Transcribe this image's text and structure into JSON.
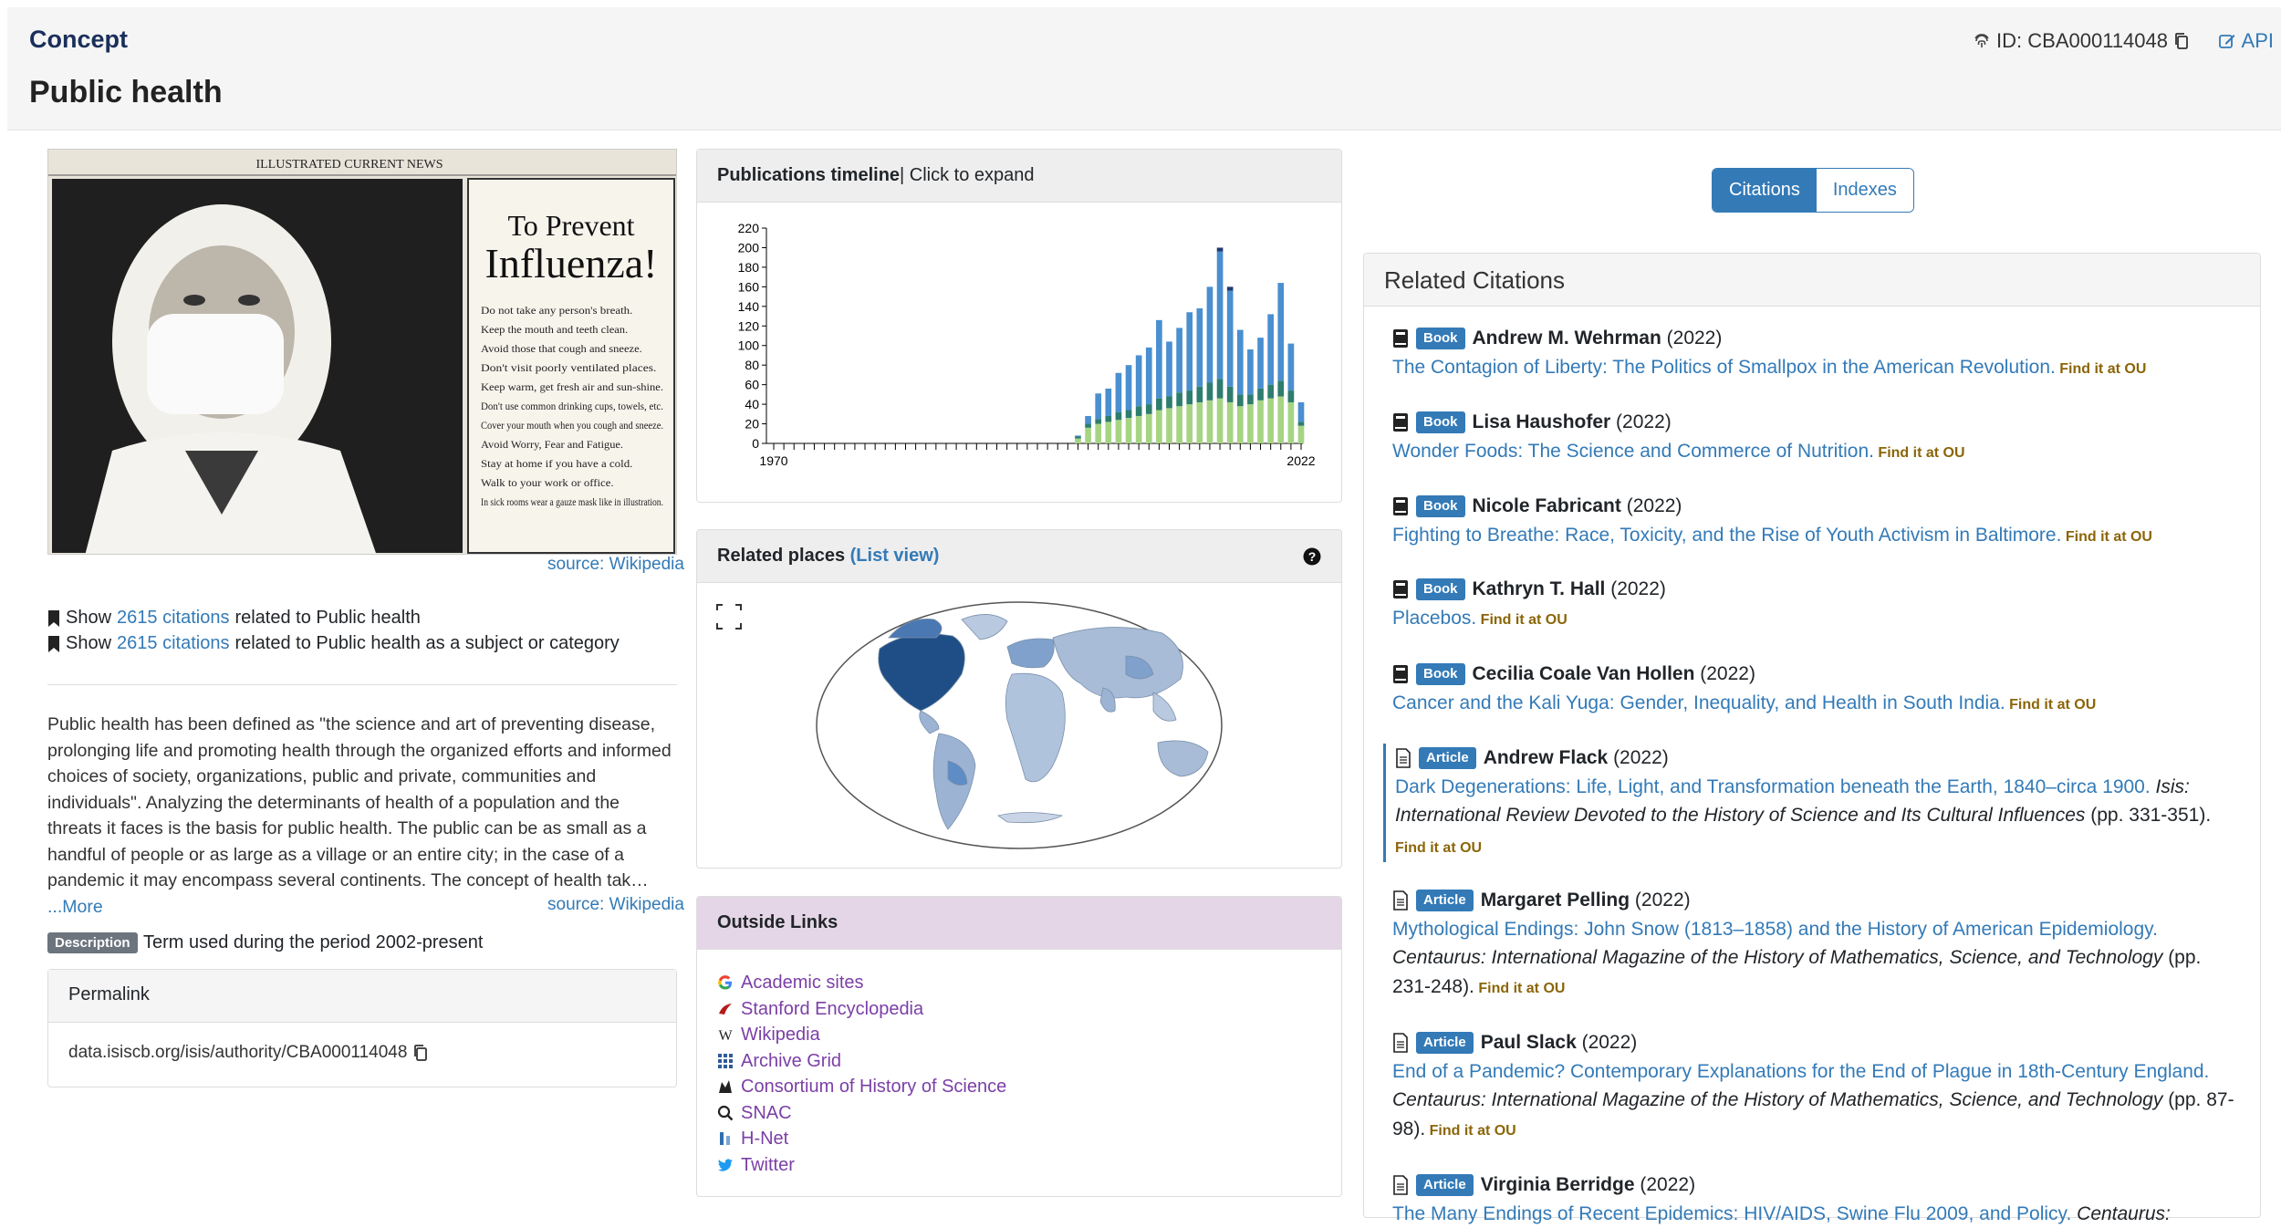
{
  "header": {
    "crumb": "Concept",
    "title": "Public health",
    "id_label": "ID: CBA000114048",
    "api_label": "API"
  },
  "poster": {
    "masthead": "ILLUSTRATED CURRENT NEWS",
    "heading1": "To Prevent",
    "heading2": "Influenza!",
    "rules": [
      "Do not take any person's breath.",
      "Keep the mouth and teeth clean.",
      "Avoid those that cough and sneeze.",
      "Don't visit poorly ventilated places.",
      "Keep warm, get fresh air and sun-shine.",
      "Don't use common drinking cups, towels, etc.",
      "Cover your mouth when you cough and sneeze.",
      "Avoid Worry, Fear and Fatigue.",
      "Stay at home if you have a cold.",
      "Walk to your work or office.",
      "In sick rooms wear a gauze mask like in illustration."
    ],
    "source": "source: Wikipedia"
  },
  "show_lines": [
    {
      "pre": "Show",
      "link": "2615 citations",
      "post": "related to Public health"
    },
    {
      "pre": "Show",
      "link": "2615 citations",
      "post": "related to Public health as a subject or category"
    }
  ],
  "description": {
    "text": "Public health has been defined as \"the science and art of preventing disease, prolonging life and promoting health through the organized efforts and informed choices of society, organizations, public and private, communities and individuals\". Analyzing the determinants of health of a population and the threats it faces is the basis for public health. The public can be as small as a handful of people or as large as a village or an entire city; in the case of a pandemic it may encompass several continents. The concept of health tak…",
    "more": "...More",
    "source": "source: Wikipedia",
    "badge": "Description",
    "period": "Term used during the period 2002-present"
  },
  "permalink": {
    "heading": "Permalink",
    "url": "data.isiscb.org/isis/authority/CBA000114048"
  },
  "timeline": {
    "heading": "Publications timeline",
    "sub": " | Click to expand"
  },
  "chart_data": {
    "type": "bar",
    "x_start": 1970,
    "x_end": 2022,
    "xticks": [
      "1970",
      "2022"
    ],
    "ylim": [
      0,
      220
    ],
    "yticks": [
      0,
      20,
      40,
      60,
      80,
      100,
      120,
      140,
      160,
      180,
      200,
      220
    ],
    "stacked": true,
    "categories": [
      "2000",
      "2001",
      "2002",
      "2003",
      "2004",
      "2005",
      "2006",
      "2007",
      "2008",
      "2009",
      "2010",
      "2011",
      "2012",
      "2013",
      "2014",
      "2015",
      "2016",
      "2017",
      "2018",
      "2019",
      "2020",
      "2021",
      "2022"
    ],
    "series": [
      {
        "color": "#a6d483",
        "values": [
          5,
          16,
          20,
          22,
          24,
          26,
          28,
          30,
          34,
          36,
          38,
          40,
          42,
          44,
          46,
          42,
          38,
          40,
          44,
          46,
          48,
          42,
          18
        ]
      },
      {
        "color": "#2e7d6e",
        "values": [
          2,
          4,
          5,
          6,
          8,
          8,
          10,
          10,
          12,
          12,
          14,
          14,
          16,
          18,
          20,
          16,
          12,
          10,
          12,
          14,
          16,
          12,
          4
        ]
      },
      {
        "color": "#4a8fd0",
        "values": [
          1,
          8,
          26,
          28,
          40,
          46,
          52,
          58,
          80,
          56,
          66,
          80,
          80,
          98,
          130,
          98,
          66,
          46,
          52,
          72,
          100,
          48,
          20
        ]
      },
      {
        "color": "#1f3b70",
        "values": [
          0,
          0,
          0,
          0,
          0,
          0,
          0,
          0,
          0,
          0,
          0,
          0,
          0,
          0,
          4,
          4,
          0,
          0,
          0,
          0,
          0,
          0,
          0
        ]
      }
    ]
  },
  "places": {
    "heading": "Related places",
    "link": "(List view)"
  },
  "outside": {
    "heading": "Outside Links",
    "links": [
      {
        "label": "Academic sites",
        "icon": "google-icon"
      },
      {
        "label": "Stanford Encyclopedia",
        "icon": "stanford-icon"
      },
      {
        "label": "Wikipedia",
        "icon": "wikipedia-icon"
      },
      {
        "label": "Archive Grid",
        "icon": "archive-grid-icon"
      },
      {
        "label": "Consortium of History of Science",
        "icon": "consortium-icon"
      },
      {
        "label": "SNAC",
        "icon": "search-icon"
      },
      {
        "label": "H-Net",
        "icon": "hnet-icon"
      },
      {
        "label": "Twitter",
        "icon": "twitter-icon"
      }
    ]
  },
  "tabs": {
    "citations": "Citations",
    "indexes": "Indexes"
  },
  "related": {
    "heading": "Related Citations",
    "find": "Find it at OU",
    "items": [
      {
        "type": "Book",
        "author": "Andrew M. Wehrman",
        "year": "(2022)",
        "title": "The Contagion of Liberty: The Politics of Smallpox in the American Revolution."
      },
      {
        "type": "Book",
        "author": "Lisa Haushofer",
        "year": "(2022)",
        "title": "Wonder Foods: The Science and Commerce of Nutrition."
      },
      {
        "type": "Book",
        "author": "Nicole Fabricant",
        "year": "(2022)",
        "title": "Fighting to Breathe: Race, Toxicity, and the Rise of Youth Activism in Baltimore."
      },
      {
        "type": "Book",
        "author": "Kathryn T. Hall",
        "year": "(2022)",
        "title": "Placebos."
      },
      {
        "type": "Book",
        "author": "Cecilia Coale Van Hollen",
        "year": "(2022)",
        "title": "Cancer and the Kali Yuga: Gender, Inequality, and Health in South India."
      },
      {
        "type": "Article",
        "author": "Andrew Flack",
        "year": "(2022)",
        "title": "Dark Degenerations: Life, Light, and Transformation beneath the Earth, 1840–circa 1900.",
        "journal": "Isis: International Review Devoted to the History of Science and Its Cultural Influences",
        "pages": "(pp. 331-351)."
      },
      {
        "type": "Article",
        "author": "Margaret Pelling",
        "year": "(2022)",
        "title": "Mythological Endings: John Snow (1813–1858) and the History of American Epidemiology.",
        "journal": "Centaurus: International Magazine of the History of Mathematics, Science, and Technology",
        "pages": "(pp. 231-248)."
      },
      {
        "type": "Article",
        "author": "Paul Slack",
        "year": "(2022)",
        "title": "End of a Pandemic? Contemporary Explanations for the End of Plague in 18th-Century England.",
        "journal": "Centaurus: International Magazine of the History of Mathematics, Science, and Technology",
        "pages": "(pp. 87-98)."
      },
      {
        "type": "Article",
        "author": "Virginia Berridge",
        "year": "(2022)",
        "title": "The Many Endings of Recent Epidemics: HIV/AIDS, Swine Flu 2009, and Policy.",
        "journal": "Centaurus:"
      }
    ]
  }
}
